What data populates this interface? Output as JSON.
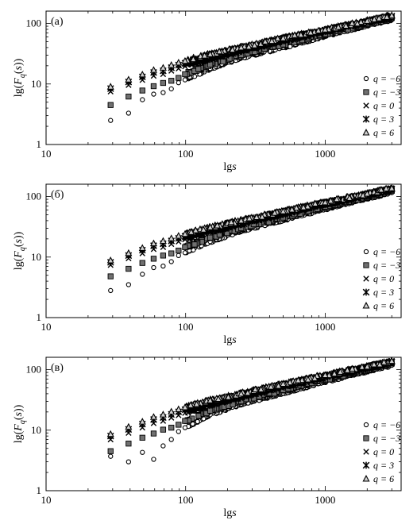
{
  "chart_data": [
    {
      "type": "scatter",
      "panel_label": "(а)",
      "xlabel": "lgs",
      "ylabel": "lg(F_q(s))",
      "x_scale": "log",
      "y_scale": "log",
      "xlim": [
        10,
        3500
      ],
      "ylim": [
        1,
        160
      ],
      "x_ticks": [
        10,
        100,
        1000
      ],
      "x_tick_labels": [
        "10",
        "100",
        "1000"
      ],
      "y_ticks": [
        1,
        10,
        100
      ],
      "y_tick_labels": [
        "1",
        "10",
        "100"
      ],
      "grid": false,
      "legend_position": "right",
      "series": [
        {
          "name": "q = −6",
          "marker": "open-circle",
          "x": [
            29,
            39,
            49,
            59,
            69,
            79,
            89,
            99,
            150,
            250,
            500,
            1000,
            2000,
            3000
          ],
          "y": [
            2.5,
            3.3,
            5.5,
            6.8,
            7.2,
            8.3,
            10.5,
            11.7,
            18,
            27,
            40,
            62,
            92,
            115
          ]
        },
        {
          "name": "q = −3",
          "marker": "filled-square",
          "x": [
            29,
            39,
            49,
            59,
            69,
            79,
            89,
            99,
            150,
            250,
            500,
            1000,
            2000,
            3000
          ],
          "y": [
            4.5,
            6.2,
            7.8,
            9.2,
            10.4,
            11.3,
            12.6,
            14.5,
            21,
            30,
            45,
            67,
            98,
            123
          ]
        },
        {
          "name": "q = 0",
          "marker": "cross",
          "x": [
            29,
            39,
            49,
            59,
            69,
            79,
            89,
            99,
            150,
            250,
            500,
            1000,
            2000,
            3000
          ],
          "y": [
            7.5,
            9.6,
            11.6,
            13.6,
            14.5,
            16.5,
            18,
            19.5,
            26,
            35,
            51,
            73,
            104,
            128
          ]
        },
        {
          "name": "q = 3",
          "marker": "asterisk",
          "x": [
            29,
            39,
            49,
            59,
            69,
            79,
            89,
            99,
            150,
            250,
            500,
            1000,
            2000,
            3000
          ],
          "y": [
            8.4,
            10.8,
            13.1,
            15.5,
            16.5,
            18.6,
            20.5,
            22,
            29,
            38,
            55,
            76,
            107,
            132
          ]
        },
        {
          "name": "q = 6",
          "marker": "open-triangle",
          "x": [
            29,
            39,
            49,
            59,
            69,
            79,
            89,
            99,
            150,
            250,
            500,
            1000,
            2000,
            3000
          ],
          "y": [
            9.0,
            11.8,
            14.3,
            17,
            18.5,
            20.5,
            22.5,
            24,
            31,
            40,
            57,
            79,
            110,
            136
          ]
        }
      ]
    },
    {
      "type": "scatter",
      "panel_label": "(б)",
      "xlabel": "lgs",
      "ylabel": "lg(F_q(s))",
      "x_scale": "log",
      "y_scale": "log",
      "xlim": [
        10,
        3500
      ],
      "ylim": [
        1,
        160
      ],
      "x_ticks": [
        10,
        100,
        1000
      ],
      "x_tick_labels": [
        "10",
        "100",
        "1000"
      ],
      "y_ticks": [
        1,
        10,
        100
      ],
      "y_tick_labels": [
        "1",
        "10",
        "100"
      ],
      "grid": false,
      "legend_position": "right",
      "series": [
        {
          "name": "q = −6",
          "marker": "open-circle",
          "x": [
            29,
            39,
            49,
            59,
            69,
            79,
            89,
            99,
            150,
            250,
            500,
            1000,
            2000,
            3000
          ],
          "y": [
            2.8,
            3.5,
            5.2,
            6.7,
            7.1,
            8.4,
            10.6,
            11.8,
            18,
            27,
            41,
            62,
            93,
            116
          ]
        },
        {
          "name": "q = −3",
          "marker": "filled-square",
          "x": [
            29,
            39,
            49,
            59,
            69,
            79,
            89,
            99,
            150,
            250,
            500,
            1000,
            2000,
            3000
          ],
          "y": [
            4.8,
            6.4,
            8.0,
            9.4,
            10.6,
            11.5,
            12.8,
            14.6,
            21,
            30,
            45,
            68,
            99,
            124
          ]
        },
        {
          "name": "q = 0",
          "marker": "cross",
          "x": [
            29,
            39,
            49,
            59,
            69,
            79,
            89,
            99,
            150,
            250,
            500,
            1000,
            2000,
            3000
          ],
          "y": [
            7.4,
            9.5,
            11.5,
            13.5,
            14.6,
            16.4,
            18,
            19.6,
            26,
            35,
            51,
            74,
            105,
            129
          ]
        },
        {
          "name": "q = 3",
          "marker": "asterisk",
          "x": [
            29,
            39,
            49,
            59,
            69,
            79,
            89,
            99,
            150,
            250,
            500,
            1000,
            2000,
            3000
          ],
          "y": [
            8.2,
            10.6,
            13.0,
            15.4,
            16.6,
            18.5,
            20.4,
            22,
            29,
            38,
            55,
            77,
            108,
            133
          ]
        },
        {
          "name": "q = 6",
          "marker": "open-triangle",
          "x": [
            29,
            39,
            49,
            59,
            69,
            79,
            89,
            99,
            150,
            250,
            500,
            1000,
            2000,
            3000
          ],
          "y": [
            8.8,
            11.6,
            14.1,
            16.8,
            18.4,
            20.4,
            22.4,
            24,
            31,
            40,
            57,
            80,
            111,
            137
          ]
        }
      ]
    },
    {
      "type": "scatter",
      "panel_label": "(в)",
      "xlabel": "lgs",
      "ylabel": "lg(F_q(s))",
      "x_scale": "log",
      "y_scale": "log",
      "xlim": [
        10,
        3500
      ],
      "ylim": [
        1,
        160
      ],
      "x_ticks": [
        10,
        100,
        1000
      ],
      "x_tick_labels": [
        "10",
        "100",
        "1000"
      ],
      "y_ticks": [
        1,
        10,
        100
      ],
      "y_tick_labels": [
        "1",
        "10",
        "100"
      ],
      "grid": false,
      "legend_position": "right",
      "series": [
        {
          "name": "q = −6",
          "marker": "open-circle",
          "x": [
            29,
            39,
            49,
            59,
            69,
            79,
            89,
            99,
            150,
            250,
            500,
            1000,
            2000,
            3000
          ],
          "y": [
            3.7,
            3.0,
            4.3,
            3.3,
            5.5,
            7.0,
            9.5,
            11.0,
            18,
            27,
            41,
            63,
            94,
            118
          ]
        },
        {
          "name": "q = −3",
          "marker": "filled-square",
          "x": [
            29,
            39,
            49,
            59,
            69,
            79,
            89,
            99,
            150,
            250,
            500,
            1000,
            2000,
            3000
          ],
          "y": [
            4.5,
            6.0,
            7.5,
            8.8,
            10.2,
            11.0,
            12.3,
            14.2,
            21,
            30,
            46,
            69,
            100,
            126
          ]
        },
        {
          "name": "q = 0",
          "marker": "cross",
          "x": [
            29,
            39,
            49,
            59,
            69,
            79,
            89,
            99,
            150,
            250,
            500,
            1000,
            2000,
            3000
          ],
          "y": [
            7.0,
            9.0,
            11.0,
            13.0,
            14.2,
            16.0,
            17.6,
            19.2,
            26,
            35,
            52,
            75,
            106,
            131
          ]
        },
        {
          "name": "q = 3",
          "marker": "asterisk",
          "x": [
            29,
            39,
            49,
            59,
            69,
            79,
            89,
            99,
            150,
            250,
            500,
            1000,
            2000,
            3000
          ],
          "y": [
            8.0,
            10.3,
            12.6,
            15.0,
            16.2,
            18.2,
            20.1,
            21.8,
            29,
            38,
            56,
            78,
            109,
            135
          ]
        },
        {
          "name": "q = 6",
          "marker": "open-triangle",
          "x": [
            29,
            39,
            49,
            59,
            69,
            79,
            89,
            99,
            150,
            250,
            500,
            1000,
            2000,
            3000
          ],
          "y": [
            8.6,
            11.3,
            13.8,
            16.5,
            18.1,
            20.2,
            22.1,
            23.8,
            31,
            40,
            58,
            81,
            112,
            139
          ]
        }
      ]
    }
  ]
}
